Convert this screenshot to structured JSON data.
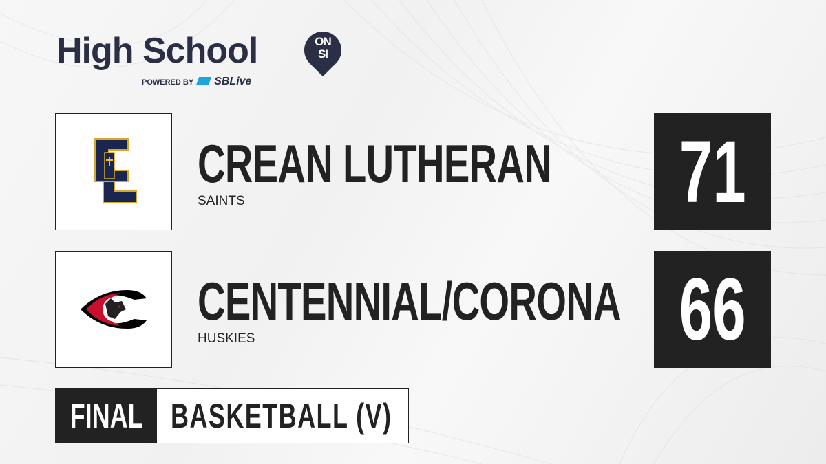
{
  "brand": {
    "title": "High School",
    "pin_text_1": "ON",
    "pin_text_2": "SI",
    "powered_by": "POWERED BY",
    "partner": "SBLive"
  },
  "teams": [
    {
      "name": "CREAN LUTHERAN",
      "mascot": "SAINTS",
      "score": "71",
      "logo": "cl-monogram-logo",
      "colors": [
        "#1a2550",
        "#d4a82a"
      ]
    },
    {
      "name": "CENTENNIAL/CORONA",
      "mascot": "HUSKIES",
      "score": "66",
      "logo": "husky-c-logo",
      "colors": [
        "#000000",
        "#c8102e"
      ]
    }
  ],
  "footer": {
    "status": "FINAL",
    "sport": "BASKETBALL (V)"
  },
  "colors": {
    "dark": "#222222",
    "brand": "#2b2f45",
    "accent": "#1fa4e0"
  }
}
